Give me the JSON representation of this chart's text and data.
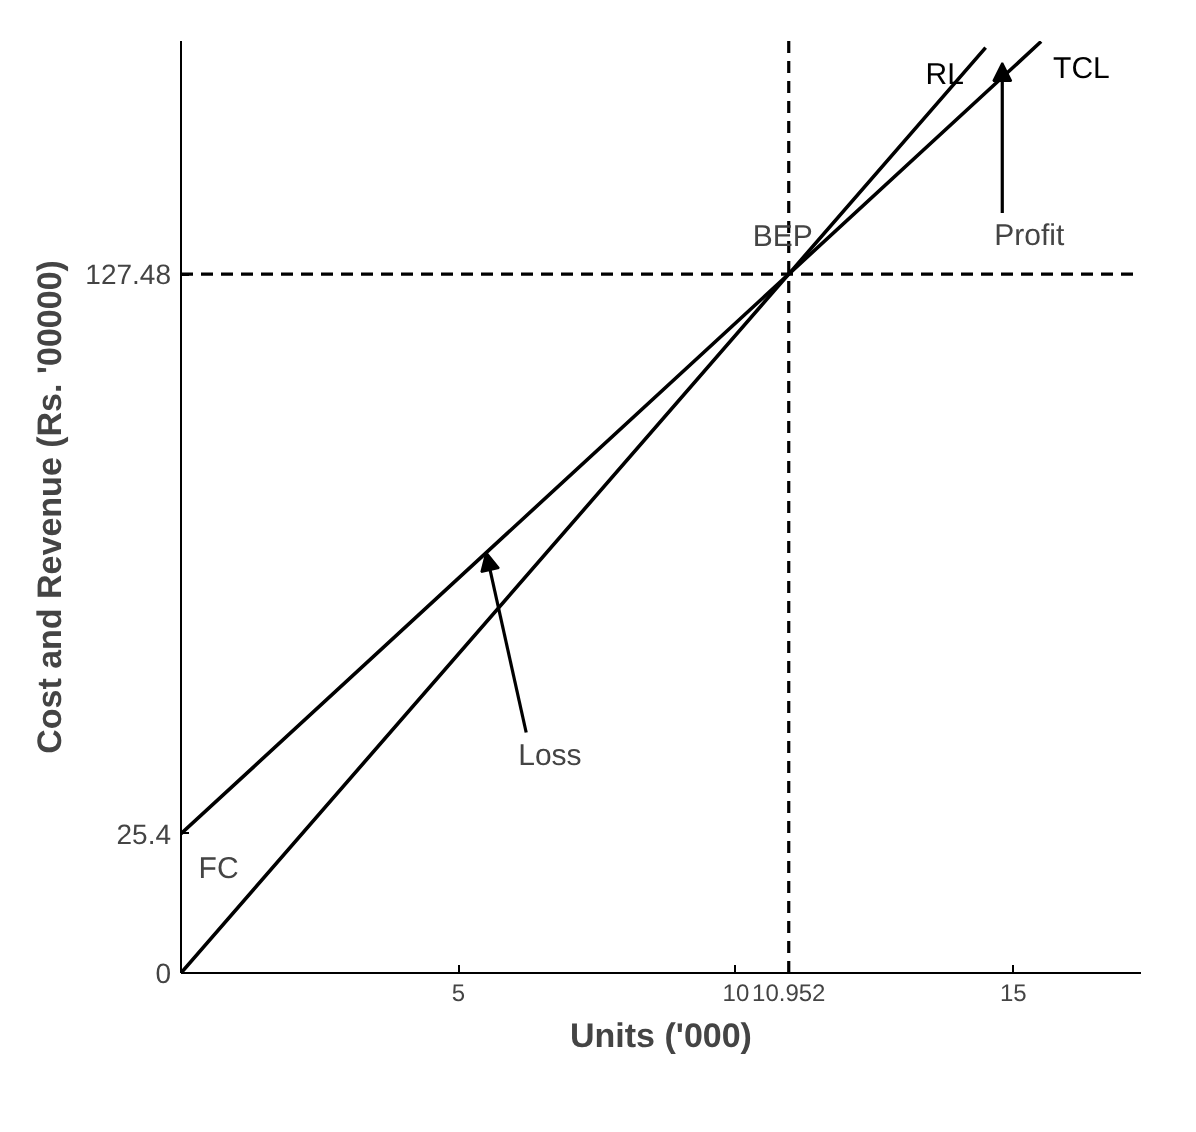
{
  "chart_data": {
    "type": "line",
    "xlabel": "Units ('000)",
    "ylabel": "Cost and Revenue (Rs. '00000)",
    "xlim": [
      0,
      17.3
    ],
    "ylim": [
      0,
      170
    ],
    "xticks": [
      5,
      10,
      10.952,
      15
    ],
    "yticks": [
      0,
      25.4,
      127.48
    ],
    "series": [
      {
        "name": "RL",
        "color": "#000000",
        "x": [
          0,
          10.952,
          14.5
        ],
        "values": [
          0,
          127.48,
          168.8
        ]
      },
      {
        "name": "TCL",
        "color": "#000000",
        "x": [
          0,
          10.952,
          15.5
        ],
        "values": [
          25.4,
          127.48,
          169.9
        ]
      }
    ],
    "ref_lines": [
      {
        "axis": "x",
        "value": 10.952,
        "line_style": "dashed",
        "color": "#000000"
      },
      {
        "axis": "y",
        "value": 127.48,
        "line_style": "dashed",
        "color": "#000000"
      }
    ],
    "annotations": [
      "FC",
      {
        "text": "BEP",
        "x": 10.952,
        "y": 127.48
      },
      {
        "text": "Profit",
        "x": 14.8,
        "y": 166
      },
      {
        "text": "Loss",
        "x": 5.5,
        "y": 76.7
      }
    ],
    "grid": false,
    "legend": "top right",
    "marker": "none",
    "line_style": "solid"
  }
}
